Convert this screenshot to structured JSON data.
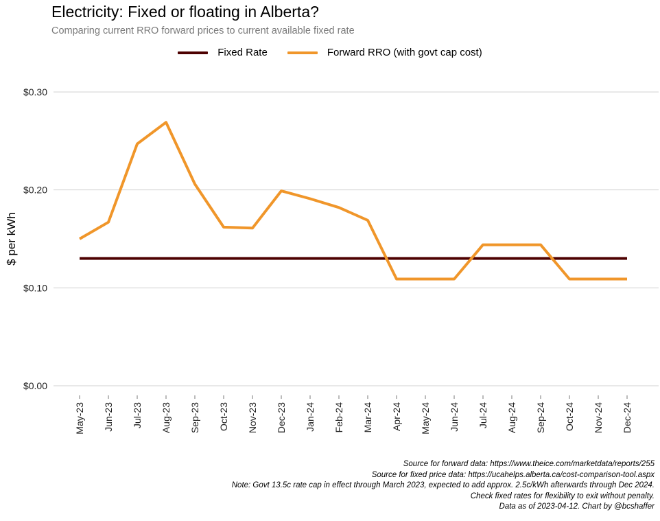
{
  "chart_data": {
    "type": "line",
    "title": "Electricity: Fixed or floating in Alberta?",
    "subtitle": "Comparing current RRO forward prices to current available fixed rate",
    "ylabel": "$ per kWh",
    "xlabel": "",
    "ylim": [
      0,
      0.3
    ],
    "yticks": [
      0.0,
      0.1,
      0.2,
      0.3
    ],
    "ytick_labels": [
      "$0.00",
      "$0.10",
      "$0.20",
      "$0.30"
    ],
    "grid": "horizontal",
    "legend_position": "top",
    "categories": [
      "May-23",
      "Jun-23",
      "Jul-23",
      "Aug-23",
      "Sep-23",
      "Oct-23",
      "Nov-23",
      "Dec-23",
      "Jan-24",
      "Feb-24",
      "Mar-24",
      "Apr-24",
      "May-24",
      "Jun-24",
      "Jul-24",
      "Aug-24",
      "Sep-24",
      "Oct-24",
      "Nov-24",
      "Dec-24"
    ],
    "series": [
      {
        "name": "Fixed Rate",
        "color": "#4d0000",
        "values": [
          0.13,
          0.13,
          0.13,
          0.13,
          0.13,
          0.13,
          0.13,
          0.13,
          0.13,
          0.13,
          0.13,
          0.13,
          0.13,
          0.13,
          0.13,
          0.13,
          0.13,
          0.13,
          0.13,
          0.13
        ]
      },
      {
        "name": "Forward RRO (with govt cap cost)",
        "color": "#f0962a",
        "values": [
          0.15,
          0.167,
          0.247,
          0.269,
          0.206,
          0.162,
          0.161,
          0.199,
          0.191,
          0.182,
          0.169,
          0.109,
          0.109,
          0.109,
          0.144,
          0.144,
          0.144,
          0.109,
          0.109,
          0.109
        ]
      }
    ],
    "captions": [
      "Source for forward data: https://www.theice.com/marketdata/reports/255",
      "Source for fixed price data: https://ucahelps.alberta.ca/cost-comparison-tool.aspx",
      "Note: Govt 13.5c rate cap in effect through March 2023, expected to add approx. 2.5c/kWh afterwards through Dec 2024.",
      "Check fixed rates for flexibility to exit without penalty.",
      "Data as of 2023-04-12. Chart by @bcshaffer"
    ]
  }
}
